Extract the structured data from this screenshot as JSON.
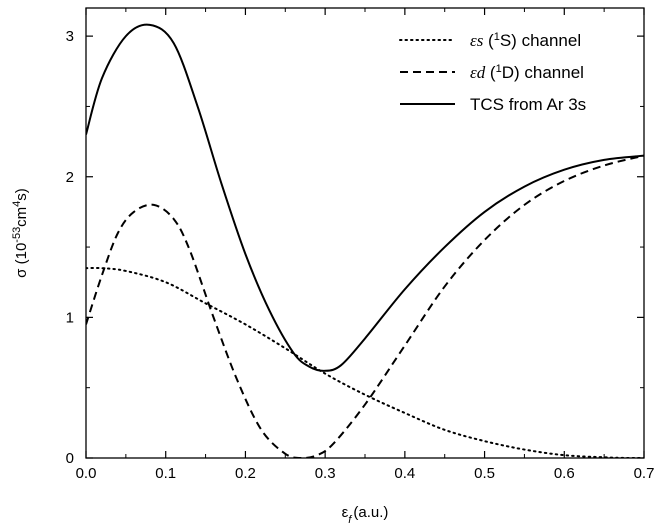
{
  "chart_data": {
    "type": "line",
    "xlabel": "ε_f (a.u.)",
    "ylabel": "σ (10^-53 cm^4 s)",
    "xlim": [
      0.0,
      0.7
    ],
    "ylim": [
      0,
      3.2
    ],
    "x_ticks": [
      "0.0",
      "0.1",
      "0.2",
      "0.3",
      "0.4",
      "0.5",
      "0.6",
      "0.7"
    ],
    "y_ticks": [
      "0",
      "1",
      "2",
      "3"
    ],
    "grid": false,
    "legend_position": "top-right",
    "series": [
      {
        "name": "εs (¹S) channel",
        "style": "dotted",
        "color": "#000000",
        "x": [
          0.0,
          0.02,
          0.05,
          0.1,
          0.15,
          0.2,
          0.25,
          0.3,
          0.35,
          0.4,
          0.45,
          0.5,
          0.55,
          0.6,
          0.65,
          0.68,
          0.7
        ],
        "y": [
          1.35,
          1.35,
          1.33,
          1.25,
          1.1,
          0.95,
          0.78,
          0.6,
          0.45,
          0.32,
          0.2,
          0.12,
          0.06,
          0.02,
          0.005,
          0.0,
          0.0
        ]
      },
      {
        "name": "εd (¹D) channel",
        "style": "dashed",
        "color": "#000000",
        "x": [
          0.0,
          0.02,
          0.04,
          0.06,
          0.085,
          0.11,
          0.13,
          0.16,
          0.19,
          0.22,
          0.25,
          0.27,
          0.29,
          0.31,
          0.35,
          0.4,
          0.45,
          0.5,
          0.55,
          0.6,
          0.65,
          0.7
        ],
        "y": [
          0.95,
          1.3,
          1.6,
          1.75,
          1.8,
          1.7,
          1.48,
          1.0,
          0.55,
          0.2,
          0.03,
          0.0,
          0.02,
          0.1,
          0.38,
          0.8,
          1.22,
          1.55,
          1.8,
          1.97,
          2.08,
          2.15
        ]
      },
      {
        "name": "TCS from Ar 3s",
        "style": "solid",
        "color": "#000000",
        "x": [
          0.0,
          0.02,
          0.05,
          0.08,
          0.11,
          0.14,
          0.17,
          0.2,
          0.23,
          0.26,
          0.28,
          0.3,
          0.32,
          0.35,
          0.4,
          0.45,
          0.5,
          0.55,
          0.6,
          0.65,
          0.7
        ],
        "y": [
          2.3,
          2.7,
          3.0,
          3.08,
          2.95,
          2.5,
          1.95,
          1.45,
          1.05,
          0.75,
          0.65,
          0.62,
          0.66,
          0.85,
          1.2,
          1.5,
          1.75,
          1.93,
          2.05,
          2.12,
          2.15
        ]
      }
    ]
  }
}
